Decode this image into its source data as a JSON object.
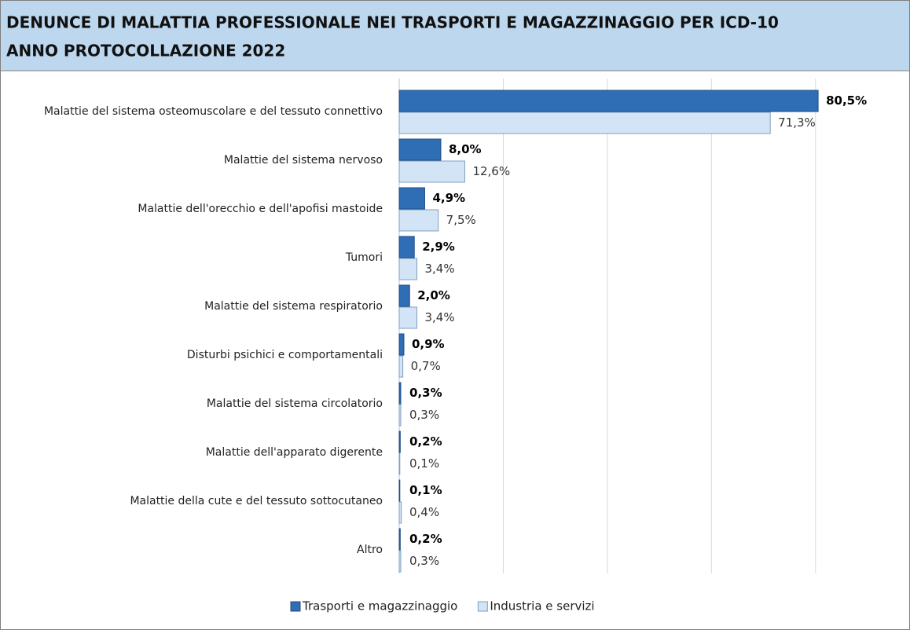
{
  "chart_data": {
    "type": "hbar",
    "title": "DENUNCE DI MALATTIA PROFESSIONALE NEI TRASPORTI E MAGAZZINAGGIO PER ICD-10",
    "subtitle": "ANNO PROTOCOLLAZIONE 2022",
    "categories": [
      "Malattie del sistema osteomuscolare e del tessuto connettivo",
      "Malattie del sistema nervoso",
      "Malattie dell'orecchio e dell'apofisi mastoide",
      "Tumori",
      "Malattie del sistema respiratorio",
      "Disturbi psichici e comportamentali",
      "Malattie del sistema circolatorio",
      "Malattie dell'apparato digerente",
      "Malattie della cute e del tessuto sottocutaneo",
      "Altro"
    ],
    "series": [
      {
        "name": "Trasporti e magazzinaggio",
        "color": "#2f6db5",
        "values": [
          80.5,
          8.0,
          4.9,
          2.9,
          2.0,
          0.9,
          0.3,
          0.2,
          0.1,
          0.2
        ],
        "value_labels": [
          "80,5%",
          "8,0%",
          "4,9%",
          "2,9%",
          "2,0%",
          "0,9%",
          "0,3%",
          "0,2%",
          "0,1%",
          "0,2%"
        ]
      },
      {
        "name": "Industria e servizi",
        "color": "#d3e4f6",
        "values": [
          71.3,
          12.6,
          7.5,
          3.4,
          3.4,
          0.7,
          0.3,
          0.1,
          0.4,
          0.3
        ],
        "value_labels": [
          "71,3%",
          "12,6%",
          "7,5%",
          "3,4%",
          "3,4%",
          "0,7%",
          "0,3%",
          "0,1%",
          "0,4%",
          "0,3%"
        ]
      }
    ],
    "xlim": [
      0,
      90
    ],
    "xticks": [
      0,
      20,
      40,
      60,
      80
    ],
    "grid": true,
    "legend": "bottom"
  }
}
